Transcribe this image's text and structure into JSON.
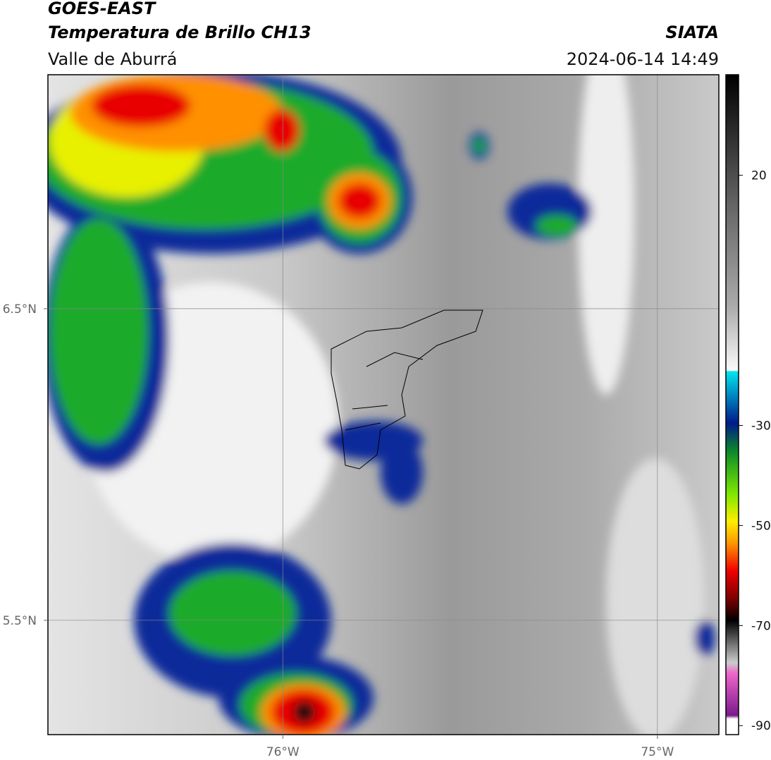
{
  "header": {
    "title": "GOES-EAST",
    "subtitle": "Temperatura de Brillo CH13",
    "agency": "SIATA",
    "region": "Valle de Aburrá",
    "timestamp": "2024-06-14 14:49"
  },
  "map": {
    "xlim": [
      -76.627,
      -74.836
    ],
    "ylim": [
      5.133,
      7.251
    ],
    "xticks": [
      {
        "value": -76,
        "label": "76°W"
      },
      {
        "value": -75,
        "label": "75°W"
      }
    ],
    "yticks": [
      {
        "value": 6.5,
        "label": "6.5°N"
      },
      {
        "value": 5.5,
        "label": "5.5°N"
      }
    ],
    "grid": true
  },
  "colorbar": {
    "clim": [
      -91.8,
      40.1
    ],
    "ticks": [
      20,
      -30,
      -50,
      -70,
      -90
    ]
  }
}
